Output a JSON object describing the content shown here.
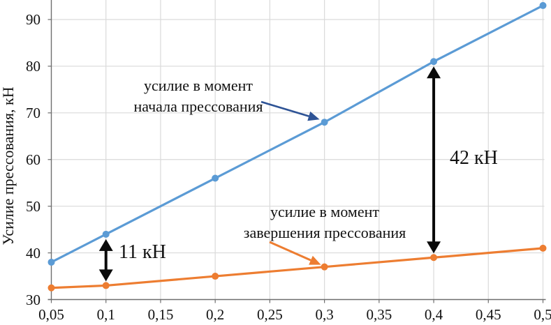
{
  "chart_data": {
    "type": "line",
    "title": "",
    "xlabel": "",
    "ylabel": "Усилие прессования, кН",
    "x": [
      0.05,
      0.1,
      0.2,
      0.3,
      0.4,
      0.5
    ],
    "x_ticks": [
      0.05,
      0.1,
      0.15,
      0.2,
      0.25,
      0.3,
      0.35,
      0.4,
      0.45,
      0.5
    ],
    "x_tick_labels": [
      "0,05",
      "0,1",
      "0,15",
      "0,2",
      "0,25",
      "0,3",
      "0,35",
      "0,4",
      "0,45",
      "0,5"
    ],
    "y_ticks": [
      30,
      40,
      50,
      60,
      70,
      80,
      90
    ],
    "y_tick_labels": [
      "30",
      "40",
      "50",
      "60",
      "70",
      "80",
      "90"
    ],
    "xlim": [
      0.05,
      0.5
    ],
    "ylim": [
      30,
      94
    ],
    "grid": true,
    "legend_position": "none",
    "series": [
      {
        "name": "усилие в момент начала прессования",
        "color": "#5B9BD5",
        "values": [
          38,
          44,
          56,
          68,
          81,
          93
        ]
      },
      {
        "name": "усилие в момент завершения прессования",
        "color": "#ED7D31",
        "values": [
          32.5,
          33,
          35,
          37,
          39,
          41
        ]
      }
    ],
    "annotations": {
      "start_label": {
        "line1": "усилие в момент",
        "line2": "начала прессования",
        "arrow_color": "#2E5395",
        "points_to": {
          "x": 0.3,
          "y": 68
        }
      },
      "end_label": {
        "line1": "усилие в момент",
        "line2": "завершения прессования",
        "arrow_color": "#ED7D31",
        "points_to": {
          "x": 0.3,
          "y": 37
        }
      },
      "gap_small": {
        "label": "11 кН",
        "x": 0.1,
        "y_top": 44,
        "y_bottom": 33
      },
      "gap_large": {
        "label": "42 кН",
        "x": 0.4,
        "y_top": 81,
        "y_bottom": 39
      }
    },
    "colors": {
      "grid": "#DADADA",
      "axis": "#6E6E6E",
      "arrow_black": "#0a0a0a",
      "text": "#111111"
    }
  }
}
